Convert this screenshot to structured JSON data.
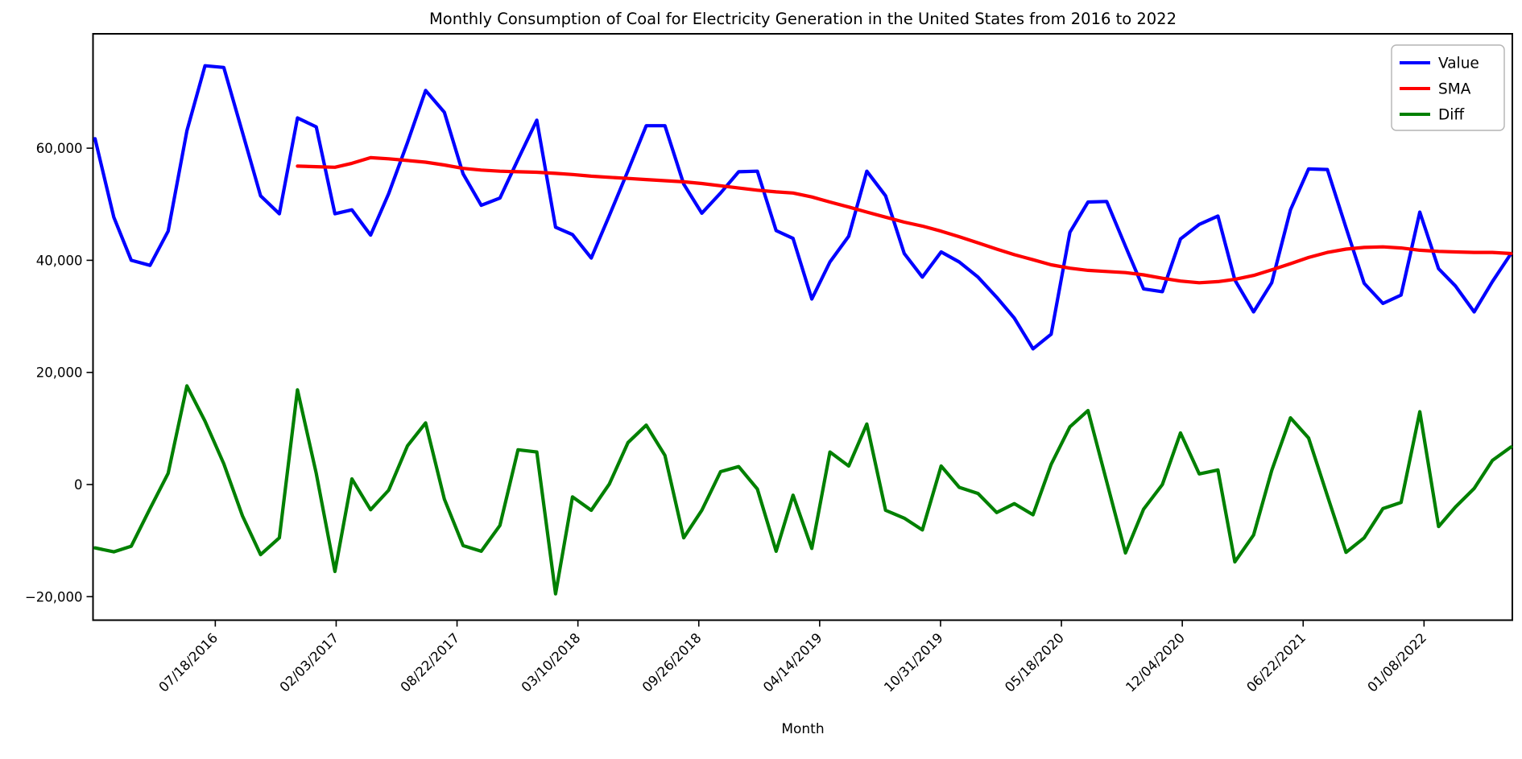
{
  "title": "Monthly Consumption of Coal for Electricity Generation in the United States from 2016 to 2022",
  "xlabel": "Month",
  "legend": [
    {
      "label": "Value",
      "color": "#0000ff"
    },
    {
      "label": "SMA",
      "color": "#ff0000"
    },
    {
      "label": "Diff",
      "color": "#008000"
    }
  ],
  "y_ticks": [
    {
      "label": "60,000",
      "value": 60000
    },
    {
      "label": "40,000",
      "value": 40000
    },
    {
      "label": "20,000",
      "value": 20000
    },
    {
      "label": "0",
      "value": 0
    },
    {
      "label": "−20,000",
      "value": -20000
    }
  ],
  "x_ticks": [
    {
      "label": "07/18/2016",
      "day": 199
    },
    {
      "label": "02/03/2017",
      "day": 399
    },
    {
      "label": "08/22/2017",
      "day": 599
    },
    {
      "label": "03/10/2018",
      "day": 799
    },
    {
      "label": "09/26/2018",
      "day": 999
    },
    {
      "label": "04/14/2019",
      "day": 1199
    },
    {
      "label": "10/31/2019",
      "day": 1399
    },
    {
      "label": "05/18/2020",
      "day": 1599
    },
    {
      "label": "12/04/2020",
      "day": 1799
    },
    {
      "label": "06/22/2021",
      "day": 1999
    },
    {
      "label": "01/08/2022",
      "day": 2199
    }
  ],
  "chart_data": {
    "type": "line",
    "x_unit": "monthly",
    "xlabel": "Month",
    "ylim": [
      -24190,
      80400
    ],
    "grid": false,
    "legend_position": "upper right",
    "series": [
      {
        "name": "Value",
        "color": "#0000ff",
        "start_month": "2016-01",
        "values": [
          61700,
          47700,
          40000,
          39100,
          45200,
          63100,
          74700,
          74400,
          62800,
          51500,
          48300,
          65400,
          63800,
          48300,
          49000,
          44500,
          51900,
          61000,
          70300,
          66400,
          55400,
          49800,
          51100,
          58000,
          65000,
          45900,
          44600,
          40400,
          48000,
          56000,
          64000,
          64000,
          53600,
          48400,
          52000,
          55800,
          55900,
          45300,
          43900,
          33100,
          39700,
          44300,
          55900,
          51500,
          41200,
          37000,
          41500,
          39700,
          37000,
          33400,
          29700,
          24200,
          26800,
          45000,
          50400,
          50500,
          42500,
          34900,
          34400,
          43800,
          46400,
          47900,
          36500,
          30800,
          36000,
          49000,
          56300,
          56200,
          45800,
          35900,
          32300,
          33800,
          48600,
          38500,
          35400,
          30800,
          36200,
          41200
        ]
      },
      {
        "name": "SMA",
        "color": "#ff0000",
        "start_month": "2016-12",
        "values": [
          56800,
          56700,
          56600,
          57300,
          58300,
          58100,
          57800,
          57500,
          57000,
          56400,
          56100,
          55900,
          55800,
          55700,
          55500,
          55300,
          55000,
          54800,
          54600,
          54400,
          54200,
          54000,
          53700,
          53300,
          52900,
          52500,
          52200,
          52000,
          51300,
          50400,
          49500,
          48600,
          47700,
          46800,
          46100,
          45200,
          44200,
          43100,
          42000,
          41000,
          40100,
          39200,
          38600,
          38200,
          38000,
          37800,
          37400,
          36800,
          36300,
          36000,
          36200,
          36600,
          37300,
          38300,
          39400,
          40500,
          41400,
          42000,
          42300,
          42400,
          42200,
          41800,
          41600,
          41500,
          41400,
          41400,
          41200
        ]
      },
      {
        "name": "Diff",
        "color": "#008000",
        "start_month": "2016-01",
        "values": [
          -11300,
          -12000,
          -11000,
          -4300,
          2000,
          17600,
          11300,
          3700,
          -5600,
          -12500,
          -9500,
          16900,
          2000,
          -15500,
          1000,
          -4500,
          -1000,
          6900,
          11000,
          -2600,
          -10900,
          -11900,
          -7300,
          6200,
          5800,
          -19500,
          -2200,
          -4600,
          100,
          7500,
          10600,
          5200,
          -9500,
          -4600,
          2300,
          3200,
          -800,
          -11900,
          -1900,
          -11400,
          5800,
          3300,
          10800,
          -4600,
          -6000,
          -8100,
          3300,
          -500,
          -1600,
          -5000,
          -3400,
          -5400,
          3600,
          10300,
          13200,
          500,
          -12200,
          -4400,
          0,
          9200,
          1900,
          2600,
          -13800,
          -9000,
          2500,
          11900,
          8300,
          -2000,
          -12100,
          -9500,
          -4300,
          -3200,
          13000,
          -7500,
          -4000,
          -700,
          4300,
          6700
        ]
      }
    ]
  }
}
